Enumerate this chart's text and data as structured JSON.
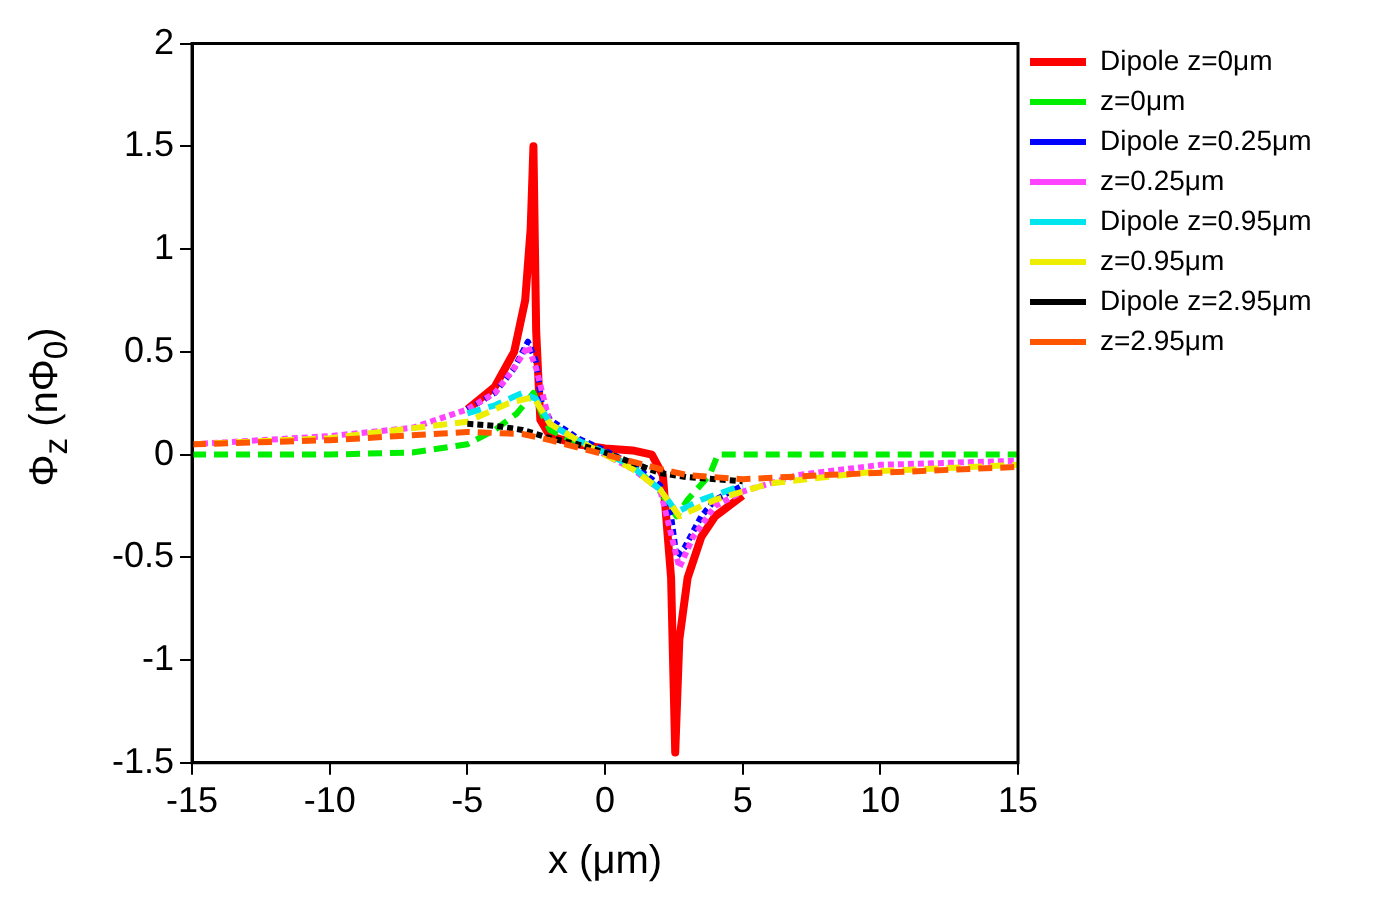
{
  "chart_data": {
    "type": "line",
    "xlabel": "x (μm)",
    "ylabel": "Φ$_{z}$ (nΦ$_{0}$)",
    "xlim": [
      -15,
      15
    ],
    "xticks": [
      -15,
      -10,
      -5,
      0,
      5,
      10,
      15
    ],
    "ylim": [
      -1.5,
      2
    ],
    "yticks": [
      -1.5,
      -1,
      -0.5,
      0,
      0.5,
      1,
      1.5,
      2
    ],
    "grid": false,
    "legend": "top right",
    "marker": "none",
    "series": [
      {
        "name": "Dipole z=0μm",
        "color": "#ff0000",
        "line_style": "solid",
        "x": [
          -5,
          -4,
          -3.3,
          -2.9,
          -2.7,
          -2.6,
          -2.5,
          -2.35,
          -2,
          -1,
          0,
          1,
          1.7,
          2.1,
          2.4,
          2.55,
          2.7,
          3,
          3.5,
          4,
          5
        ],
        "values": [
          0.22,
          0.33,
          0.5,
          0.75,
          1.1,
          1.5,
          0.6,
          0.17,
          0.09,
          0.05,
          0.03,
          0.02,
          0,
          -0.1,
          -0.6,
          -1.45,
          -0.9,
          -0.6,
          -0.4,
          -0.3,
          -0.2
        ]
      },
      {
        "name": "z=0μm",
        "color": "#00ee00",
        "line_style": "dashed",
        "x": [
          -15,
          -10,
          -7,
          -5,
          -4,
          -3.2,
          -2.6,
          -2.3,
          -2,
          -1,
          0,
          1,
          2,
          2.6,
          3,
          3.8,
          4.1,
          15
        ],
        "values": [
          0,
          0,
          0.01,
          0.05,
          0.12,
          0.2,
          0.3,
          0.2,
          0.12,
          0.06,
          0.01,
          -0.05,
          -0.18,
          -0.3,
          -0.22,
          -0.1,
          0,
          0
        ]
      },
      {
        "name": "Dipole z=0.25μm",
        "color": "#0000ff",
        "line_style": "dotted",
        "x": [
          -5,
          -4,
          -3.3,
          -2.8,
          -2.5,
          -2.3,
          -2,
          -1,
          0,
          1,
          2,
          2.4,
          2.6,
          2.9,
          3.5,
          4,
          5
        ],
        "values": [
          0.22,
          0.3,
          0.42,
          0.55,
          0.45,
          0.25,
          0.17,
          0.08,
          0.02,
          -0.05,
          -0.15,
          -0.3,
          -0.5,
          -0.45,
          -0.3,
          -0.22,
          -0.15
        ]
      },
      {
        "name": "z=0.25μm",
        "color": "#ff44ff",
        "line_style": "dotted",
        "x": [
          -15,
          -10,
          -7,
          -5,
          -4,
          -3.3,
          -2.8,
          -2.5,
          -2,
          -1,
          0,
          1,
          2,
          2.7,
          3.2,
          4,
          5,
          7,
          10,
          15
        ],
        "values": [
          0.05,
          0.09,
          0.13,
          0.22,
          0.3,
          0.42,
          0.53,
          0.42,
          0.15,
          0.07,
          0,
          -0.07,
          -0.17,
          -0.55,
          -0.4,
          -0.25,
          -0.18,
          -0.1,
          -0.05,
          -0.03
        ]
      },
      {
        "name": "Dipole z=0.95μm",
        "color": "#00e5ee",
        "line_style": "dashed",
        "x": [
          -5,
          -4,
          -3,
          -2.5,
          -2,
          -1,
          0,
          1,
          2,
          2.6,
          3.5,
          5
        ],
        "values": [
          0.2,
          0.24,
          0.3,
          0.27,
          0.15,
          0.07,
          0.01,
          -0.06,
          -0.17,
          -0.28,
          -0.22,
          -0.15
        ]
      },
      {
        "name": "z=0.95μm",
        "color": "#eeee00",
        "line_style": "dashed",
        "x": [
          -15,
          -10,
          -5,
          -3.5,
          -2.6,
          -2,
          -1,
          0,
          1,
          2,
          2.7,
          4,
          6,
          10,
          15
        ],
        "values": [
          0.05,
          0.08,
          0.16,
          0.25,
          0.28,
          0.15,
          0.07,
          0,
          -0.07,
          -0.17,
          -0.3,
          -0.22,
          -0.14,
          -0.08,
          -0.05
        ]
      },
      {
        "name": "Dipole z=2.95μm",
        "color": "#000000",
        "line_style": "dotted",
        "x": [
          -5,
          -4,
          -3,
          -2,
          -1,
          0,
          1,
          2,
          3,
          4,
          5
        ],
        "values": [
          0.15,
          0.14,
          0.12,
          0.08,
          0.05,
          0.01,
          -0.04,
          -0.09,
          -0.11,
          -0.12,
          -0.13
        ]
      },
      {
        "name": "z=2.95μm",
        "color": "#ff5500",
        "line_style": "dashed",
        "x": [
          -15,
          -10,
          -5,
          -3,
          -2,
          0,
          2,
          3,
          5,
          8,
          15
        ],
        "values": [
          0.05,
          0.07,
          0.11,
          0.1,
          0.07,
          0,
          -0.07,
          -0.1,
          -0.12,
          -0.1,
          -0.06
        ]
      }
    ]
  }
}
